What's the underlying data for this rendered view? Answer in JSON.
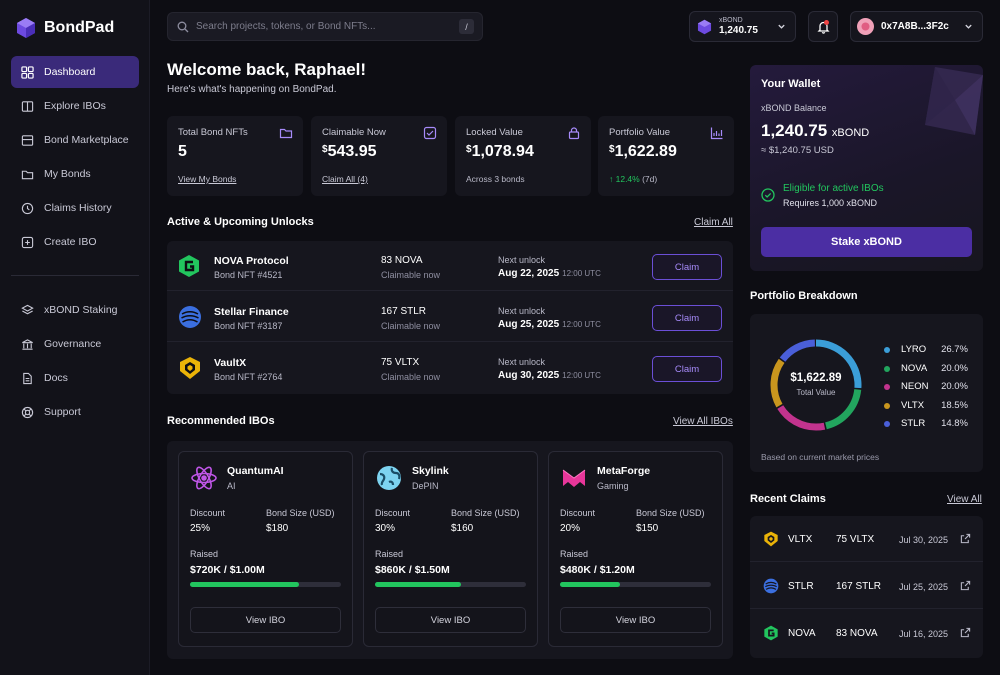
{
  "app": {
    "name": "BondPad"
  },
  "sidebar": {
    "items": [
      {
        "label": "Dashboard",
        "icon": "grid-icon",
        "active": true
      },
      {
        "label": "Explore IBOs",
        "icon": "book-icon"
      },
      {
        "label": "Bond Marketplace",
        "icon": "store-icon"
      },
      {
        "label": "My Bonds",
        "icon": "folder-icon"
      },
      {
        "label": "Claims History",
        "icon": "history-icon"
      },
      {
        "label": "Create IBO",
        "icon": "plus-square-icon"
      }
    ],
    "secondary": [
      {
        "label": "xBOND Staking",
        "icon": "layers-icon"
      },
      {
        "label": "Governance",
        "icon": "bank-icon"
      },
      {
        "label": "Docs",
        "icon": "doc-icon"
      },
      {
        "label": "Support",
        "icon": "lifebuoy-icon"
      }
    ]
  },
  "header": {
    "search_placeholder": "Search projects, tokens, or Bond NFTs...",
    "search_shortcut": "/",
    "token_label": "xBOND",
    "token_balance": "1,240.75",
    "account": "0x7A8B...3F2c"
  },
  "welcome": {
    "title": "Welcome back, Raphael!",
    "subtitle": "Here's what's happening on BondPad."
  },
  "stats": [
    {
      "title": "Total Bond NFTs",
      "value": "5",
      "prefix": "",
      "footer": "View My Bonds",
      "footer_type": "link",
      "icon": "folder-icon"
    },
    {
      "title": "Claimable Now",
      "value": "543.95",
      "prefix": "$",
      "footer": "Claim All (4)",
      "footer_type": "link",
      "icon": "check-square-icon"
    },
    {
      "title": "Locked Value",
      "value": "1,078.94",
      "prefix": "$",
      "footer": "Across 3 bonds",
      "footer_type": "text",
      "icon": "lock-icon"
    },
    {
      "title": "Portfolio Value",
      "value": "1,622.89",
      "prefix": "$",
      "footer": "↑ 12.4%",
      "footer_extra": "(7d)",
      "footer_type": "green",
      "icon": "chart-icon"
    }
  ],
  "unlocks": {
    "title": "Active & Upcoming Unlocks",
    "action": "Claim All",
    "rows": [
      {
        "name": "NOVA Protocol",
        "nft": "Bond NFT #4521",
        "amount": "83 NOVA",
        "status": "Claimable now",
        "next_label": "Next unlock",
        "date": "Aug 22, 2025",
        "time": "12:00 UTC",
        "button": "Claim"
      },
      {
        "name": "Stellar Finance",
        "nft": "Bond NFT #3187",
        "amount": "167 STLR",
        "status": "Claimable now",
        "next_label": "Next unlock",
        "date": "Aug 25, 2025",
        "time": "12:00 UTC",
        "button": "Claim"
      },
      {
        "name": "VaultX",
        "nft": "Bond NFT #2764",
        "amount": "75 VLTX",
        "status": "Claimable now",
        "next_label": "Next unlock",
        "date": "Aug 30, 2025",
        "time": "12:00 UTC",
        "button": "Claim"
      }
    ]
  },
  "recommended": {
    "title": "Recommended IBOs",
    "action": "View All IBOs",
    "cards": [
      {
        "name": "QuantumAI",
        "category": "AI",
        "discount_label": "Discount",
        "discount": "25%",
        "size_label": "Bond Size (USD)",
        "size": "$180",
        "raised_label": "Raised",
        "raised": "$720K / $1.00M",
        "progress": 0.72,
        "button": "View IBO"
      },
      {
        "name": "Skylink",
        "category": "DePIN",
        "discount_label": "Discount",
        "discount": "30%",
        "size_label": "Bond Size (USD)",
        "size": "$160",
        "raised_label": "Raised",
        "raised": "$860K / $1.50M",
        "progress": 0.57,
        "button": "View IBO"
      },
      {
        "name": "MetaForge",
        "category": "Gaming",
        "discount_label": "Discount",
        "discount": "20%",
        "size_label": "Bond Size (USD)",
        "size": "$150",
        "raised_label": "Raised",
        "raised": "$480K / $1.20M",
        "progress": 0.4,
        "button": "View IBO"
      }
    ]
  },
  "wallet": {
    "title": "Your Wallet",
    "balance_label": "xBOND Balance",
    "balance": "1,240.75",
    "balance_unit": "xBOND",
    "usd": "≈ $1,240.75 USD",
    "eligible": "Eligible for active IBOs",
    "requires": "Requires 1,000 xBOND",
    "button": "Stake xBOND"
  },
  "portfolio": {
    "title": "Portfolio Breakdown",
    "center_value": "$1,622.89",
    "center_label": "Total Value",
    "note": "Based on current market prices"
  },
  "chart_data": {
    "type": "pie",
    "categories": [
      "LYRO",
      "NOVA",
      "NEON",
      "VLTX",
      "STLR"
    ],
    "values": [
      26.7,
      20.0,
      20.0,
      18.5,
      14.8
    ],
    "labels": [
      "26.7%",
      "20.0%",
      "20.0%",
      "18.5%",
      "14.8%"
    ],
    "colors": [
      "#3b9ed8",
      "#22a55e",
      "#c2338e",
      "#c9961e",
      "#4a5fd9"
    ]
  },
  "recent": {
    "title": "Recent Claims",
    "action": "View All",
    "rows": [
      {
        "symbol": "VLTX",
        "amount": "75 VLTX",
        "date": "Jul 30, 2025"
      },
      {
        "symbol": "STLR",
        "amount": "167 STLR",
        "date": "Jul 25, 2025"
      },
      {
        "symbol": "NOVA",
        "amount": "83 NOVA",
        "date": "Jul 16, 2025"
      }
    ]
  }
}
